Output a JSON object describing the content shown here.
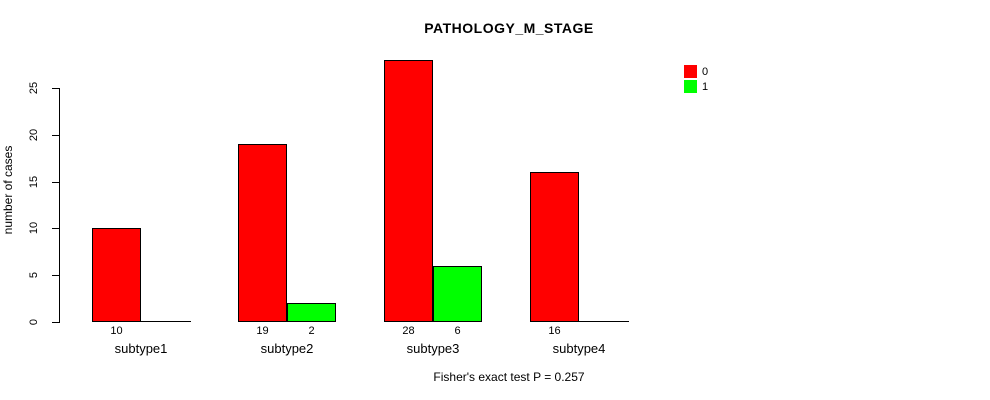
{
  "chart_data": {
    "type": "bar",
    "title": "PATHOLOGY_M_STAGE",
    "ylabel": "number of cases",
    "xlabel": "",
    "categories": [
      "subtype1",
      "subtype2",
      "subtype3",
      "subtype4"
    ],
    "series": [
      {
        "name": "0",
        "color": "#ff0000",
        "values": [
          10,
          19,
          28,
          16
        ]
      },
      {
        "name": "1",
        "color": "#00ff00",
        "values": [
          0,
          2,
          6,
          0
        ]
      }
    ],
    "yticks": [
      0,
      5,
      10,
      15,
      20,
      25
    ],
    "ylim": [
      0,
      28
    ],
    "grid": false,
    "legend_position": "top-right",
    "bar_value_labels": [
      [
        "10",
        "",
        "19",
        "2",
        "28",
        "6",
        "16",
        ""
      ]
    ],
    "note": "Fisher's exact test P = 0.257"
  }
}
